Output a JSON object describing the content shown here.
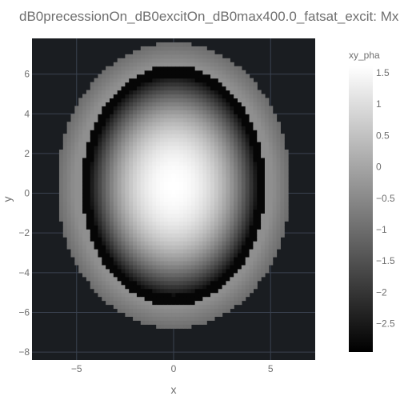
{
  "chart_data": {
    "type": "heatmap",
    "title": "dB0precessionOn_dB0excitOn_dB0max400.0_fatsat_excit: Mx",
    "xlabel": "x",
    "ylabel": "y",
    "xlim": [
      -7.3,
      7.3
    ],
    "ylim": [
      -8.4,
      7.8
    ],
    "xticks": [
      {
        "value": -5,
        "label": "−5"
      },
      {
        "value": 0,
        "label": "0"
      },
      {
        "value": 5,
        "label": "5"
      }
    ],
    "yticks": [
      {
        "value": 6,
        "label": "6"
      },
      {
        "value": 4,
        "label": "4"
      },
      {
        "value": 2,
        "label": "2"
      },
      {
        "value": 0,
        "label": "0"
      },
      {
        "value": -2,
        "label": "−2"
      },
      {
        "value": -4,
        "label": "−4"
      },
      {
        "value": -6,
        "label": "−6"
      },
      {
        "value": -8,
        "label": "−8"
      }
    ],
    "grid": true,
    "plot_background": "#1a1d21",
    "grid_color": "#3a4250",
    "colorscale": "greys",
    "colorbar": {
      "title": "xy_pha",
      "range": [
        -2.95,
        1.6
      ],
      "ticks": [
        {
          "value": 1.5,
          "label": "1.5"
        },
        {
          "value": 1,
          "label": "1"
        },
        {
          "value": 0.5,
          "label": "0.5"
        },
        {
          "value": 0,
          "label": "0"
        },
        {
          "value": -0.5,
          "label": "−0.5"
        },
        {
          "value": -1,
          "label": "−1"
        },
        {
          "value": -1.5,
          "label": "−1.5"
        },
        {
          "value": -2,
          "label": "−2"
        },
        {
          "value": -2.5,
          "label": "−2.5"
        }
      ]
    },
    "field": {
      "description_values": "approximate phase map: bright center (~1.6), radial falloff to ~-2.9 at skull edge, outer scalp ring ~0.2",
      "center": [
        0,
        0.4
      ],
      "inner_radii": [
        4.3,
        5.5
      ],
      "outer_radii": [
        6.0,
        7.2
      ]
    }
  }
}
